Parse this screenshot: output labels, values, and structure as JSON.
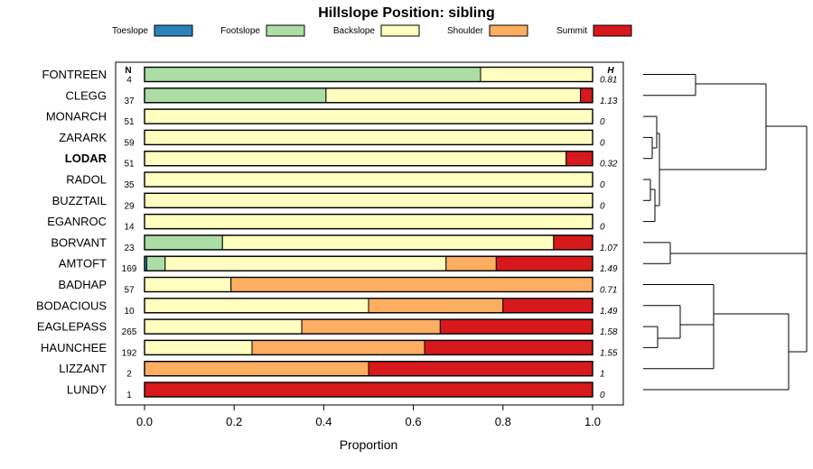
{
  "chart_data": {
    "type": "bar",
    "stacked": true,
    "title": "Hillslope Position: sibling",
    "xlabel": "Proportion",
    "ylabel": "",
    "xlim": [
      0,
      1
    ],
    "x_ticks": [
      "0.0",
      "0.2",
      "0.4",
      "0.6",
      "0.8",
      "1.0"
    ],
    "n_header": "N",
    "h_header": "H",
    "legend_position": "top",
    "highlight_category": "LODAR",
    "series_names": [
      "Toeslope",
      "Footslope",
      "Backslope",
      "Shoulder",
      "Summit"
    ],
    "colors": {
      "Toeslope": "#2b83ba",
      "Footslope": "#abdda4",
      "Backslope": "#ffffbf",
      "Shoulder": "#fdae61",
      "Summit": "#d7191c"
    },
    "categories": [
      "FONTREEN",
      "CLEGG",
      "MONARCH",
      "ZARARK",
      "LODAR",
      "RADOL",
      "BUZZTAIL",
      "EGANROC",
      "BORVANT",
      "AMTOFT",
      "BADHAP",
      "BODACIOUS",
      "EAGLEPASS",
      "HAUNCHEE",
      "LIZZANT",
      "LUNDY"
    ],
    "n": [
      "4",
      "37",
      "51",
      "59",
      "51",
      "35",
      "29",
      "14",
      "23",
      "169",
      "57",
      "10",
      "265",
      "192",
      "2",
      "1"
    ],
    "h": [
      "0.81",
      "1.13",
      "0",
      "0",
      "0.32",
      "0",
      "0",
      "0",
      "1.07",
      "1.49",
      "0.71",
      "1.49",
      "1.58",
      "1.55",
      "1",
      "0"
    ],
    "series": [
      {
        "name": "Toeslope",
        "values": [
          0,
          0,
          0,
          0,
          0,
          0,
          0,
          0,
          0,
          0.005,
          0,
          0,
          0,
          0,
          0,
          0
        ]
      },
      {
        "name": "Footslope",
        "values": [
          0.75,
          0.405,
          0,
          0,
          0,
          0,
          0,
          0,
          0.174,
          0.041,
          0,
          0,
          0,
          0,
          0,
          0
        ]
      },
      {
        "name": "Backslope",
        "values": [
          0.25,
          0.568,
          1,
          1,
          0.941,
          1,
          1,
          1,
          0.739,
          0.627,
          0.193,
          0.5,
          0.351,
          0.24,
          0,
          0
        ]
      },
      {
        "name": "Shoulder",
        "values": [
          0,
          0,
          0,
          0,
          0,
          0,
          0,
          0,
          0,
          0.112,
          0.807,
          0.3,
          0.309,
          0.385,
          0.5,
          0
        ]
      },
      {
        "name": "Summit",
        "values": [
          0,
          0.027,
          0,
          0,
          0.059,
          0,
          0,
          0,
          0.087,
          0.215,
          0,
          0.2,
          0.34,
          0.375,
          0.5,
          1
        ]
      }
    ]
  }
}
